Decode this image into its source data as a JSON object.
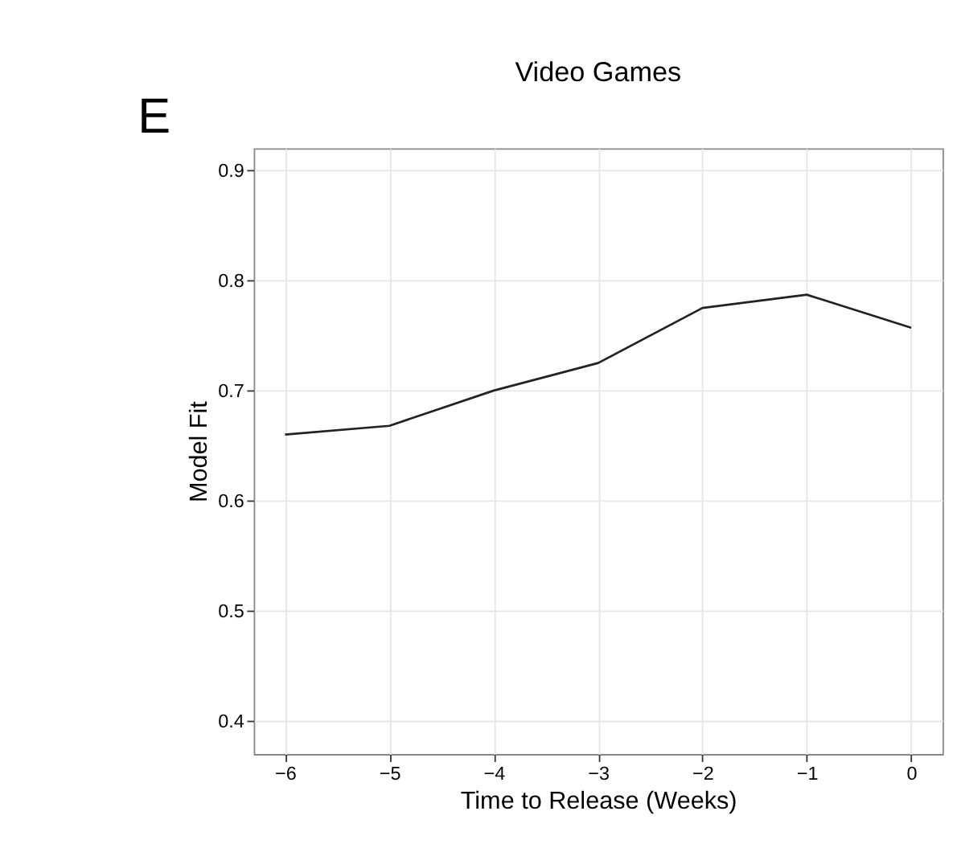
{
  "chart_data": {
    "type": "line",
    "title": "Video Games",
    "xlabel": "Time to Release (Weeks)",
    "ylabel": "Model Fit",
    "annotations": [
      "E"
    ],
    "x": [
      -6,
      -5,
      -4,
      -3,
      -2,
      -1,
      0
    ],
    "series": [
      {
        "color": "#222222",
        "values": [
          0.66,
          0.668,
          0.7,
          0.725,
          0.775,
          0.787,
          0.757
        ]
      }
    ],
    "xlim": [
      -6.3,
      0.3
    ],
    "xticks": [
      -6,
      -5,
      -4,
      -3,
      -2,
      -1,
      0
    ],
    "ylim": [
      0.37,
      0.92
    ],
    "yticks": [
      0.4,
      0.5,
      0.6,
      0.7,
      0.8,
      0.9
    ],
    "grid": true,
    "legend": false,
    "marker": "none",
    "line_style": "solid"
  }
}
